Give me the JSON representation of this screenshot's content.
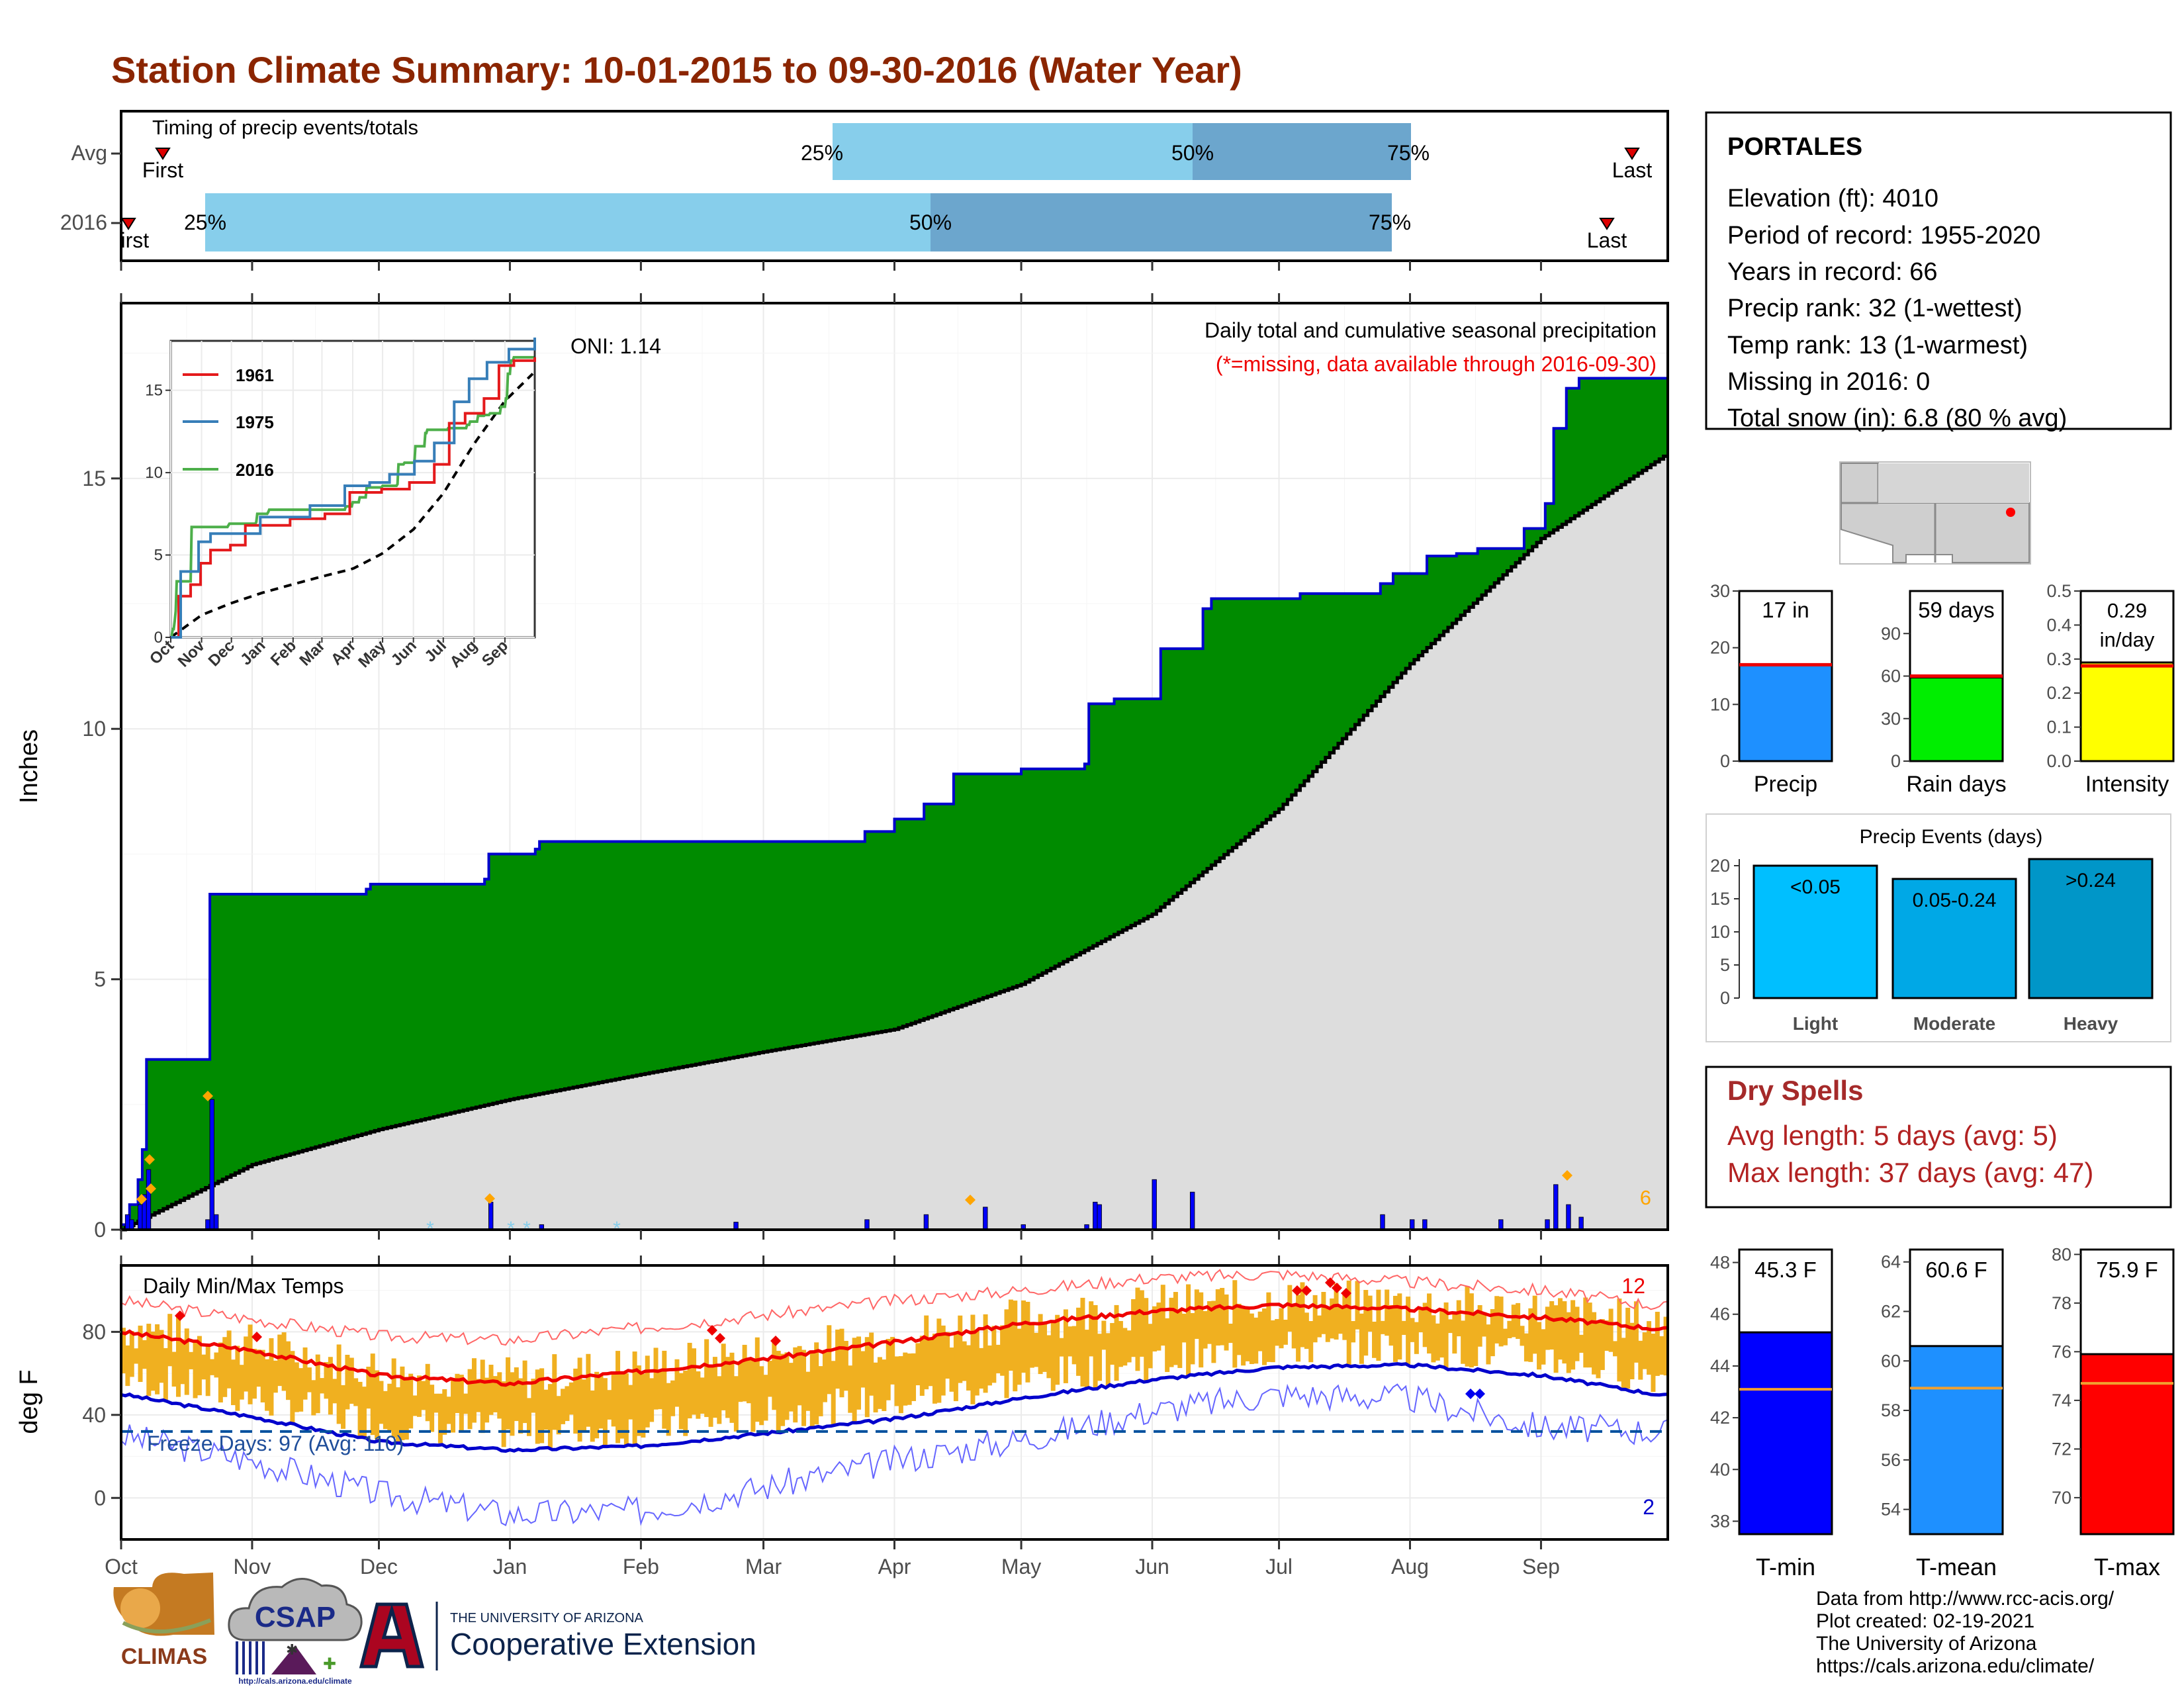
{
  "title": "Station Climate Summary: 10-01-2015 to 09-30-2016 (Water Year)",
  "months": [
    "Oct",
    "Nov",
    "Dec",
    "Jan",
    "Feb",
    "Mar",
    "Apr",
    "May",
    "Jun",
    "Jul",
    "Aug",
    "Sep"
  ],
  "timing": {
    "label": "Timing of precip events/totals",
    "rows": [
      {
        "name": "Avg",
        "first": "First",
        "last": "Last",
        "p25": "25%",
        "p50": "50%",
        "p75": "75%"
      },
      {
        "name": "2016",
        "first": "First",
        "last": "Last",
        "p25": "25%",
        "p50": "50%",
        "p75": "75%"
      }
    ]
  },
  "precip_panel": {
    "ylabel": "Inches",
    "yticks": [
      "0",
      "5",
      "10",
      "15"
    ],
    "oni": "ONI: 1.14",
    "caption": "Daily total and cumulative seasonal precipitation",
    "missing_note": "(*=missing, data available through 2016-09-30)",
    "count_label": "6"
  },
  "inset": {
    "legend": [
      "1961",
      "1975",
      "2016"
    ],
    "colors": [
      "#e41a1c",
      "#377eb8",
      "#4daf4a"
    ],
    "yticks": [
      "0",
      "5",
      "10",
      "15"
    ],
    "xticks": [
      "Oct",
      "Nov",
      "Dec",
      "Jan",
      "Feb",
      "Mar",
      "Apr",
      "May",
      "Jun",
      "Jul",
      "Aug",
      "Sep"
    ]
  },
  "temp_panel": {
    "ylabel": "deg F",
    "label": "Daily Min/Max Temps",
    "yticks": [
      "0",
      "40",
      "80"
    ],
    "freeze": "Freeze Days: 97 (Avg: 110)",
    "hot_count": "12",
    "cold_count": "2"
  },
  "station": {
    "name": "PORTALES",
    "lines": [
      "Elevation (ft): 4010",
      "Period of record: 1955-2020",
      "Years in record: 66",
      "Precip rank: 32 (1-wettest)",
      "Temp rank: 13 (1-warmest)",
      "Missing in 2016: 0",
      "Total snow (in): 6.8 (80 % avg)"
    ]
  },
  "summary_bars": [
    {
      "name": "Precip",
      "label": "17 in",
      "value": 17,
      "avg": 17,
      "ylim": [
        0,
        30
      ],
      "yticks": [
        "0",
        "10",
        "20",
        "30"
      ],
      "color": "#1e90ff"
    },
    {
      "name": "Rain days",
      "label": "59 days",
      "value": 59,
      "avg": 60,
      "ylim": [
        0,
        120
      ],
      "yticks": [
        "0",
        "30",
        "60",
        "90"
      ],
      "color": "#00ee00"
    },
    {
      "name": "Intensity",
      "label1": "0.29",
      "label2": "in/day",
      "value": 0.29,
      "avg": 0.28,
      "ylim": [
        0,
        0.5
      ],
      "yticks": [
        "0.0",
        "0.1",
        "0.2",
        "0.3",
        "0.4",
        "0.5"
      ],
      "color": "#ffff00"
    }
  ],
  "precip_events": {
    "title": "Precip Events (days)",
    "categories": [
      "Light",
      "Moderate",
      "Heavy"
    ],
    "labels": [
      "<0.05",
      "0.05-0.24",
      ">0.24"
    ],
    "values": [
      20,
      18,
      21
    ],
    "yticks": [
      "0",
      "5",
      "10",
      "15",
      "20"
    ],
    "colors": [
      "#00bfff",
      "#00a8e6",
      "#0096c8"
    ]
  },
  "dry_spells": {
    "title": "Dry Spells",
    "avg": "Avg length: 5 days (avg: 5)",
    "max": "Max length: 37 days (avg: 47)"
  },
  "temp_bars": [
    {
      "name": "T-min",
      "label": "45.3 F",
      "value": 45.3,
      "avg": 43.1,
      "ylim": [
        37.5,
        48.5
      ],
      "yticks": [
        "38",
        "40",
        "42",
        "44",
        "46",
        "48"
      ],
      "color": "#0000ff"
    },
    {
      "name": "T-mean",
      "label": "60.6 F",
      "value": 60.6,
      "avg": 58.9,
      "ylim": [
        53,
        64.5
      ],
      "yticks": [
        "54",
        "56",
        "58",
        "60",
        "62",
        "64"
      ],
      "color": "#1e90ff"
    },
    {
      "name": "T-max",
      "label": "75.9 F",
      "value": 75.9,
      "avg": 74.7,
      "ylim": [
        68.5,
        80.2
      ],
      "yticks": [
        "70",
        "72",
        "74",
        "76",
        "78",
        "80"
      ],
      "color": "#ff0000"
    }
  ],
  "footer": {
    "lines": [
      "Data from http://www.rcc-acis.org/",
      "Plot created: 02-19-2021",
      "The University of Arizona",
      "https://cals.arizona.edu/climate/"
    ],
    "climas": "CLIMAS",
    "csap": "CSAP",
    "csap_url": "http://cals.arizona.edu/climate",
    "ua_small": "THE UNIVERSITY OF ARIZONA",
    "ua_big": "Cooperative Extension"
  },
  "chart_data": {
    "type": "area",
    "title": "Daily total and cumulative seasonal precipitation",
    "ylabel": "Inches",
    "ylim": [
      0,
      18.5
    ],
    "cumulative_2016": {
      "dates": [
        "10-01",
        "10-03",
        "10-05",
        "10-06",
        "10-07",
        "10-21",
        "10-22",
        "11-28",
        "11-29",
        "12-26",
        "12-27",
        "01-07",
        "01-08",
        "03-25",
        "04-01",
        "04-08",
        "04-15",
        "05-01",
        "05-16",
        "05-17",
        "05-23",
        "06-03",
        "06-13",
        "06-15",
        "07-06",
        "07-25",
        "07-28",
        "08-05",
        "08-12",
        "08-17",
        "08-28",
        "09-02",
        "09-04",
        "09-07",
        "09-10",
        "09-30"
      ],
      "values": [
        0.1,
        0.5,
        1.0,
        1.6,
        3.4,
        3.4,
        6.7,
        6.8,
        6.9,
        7.0,
        7.5,
        7.6,
        7.75,
        7.95,
        8.2,
        8.5,
        9.1,
        9.2,
        9.3,
        10.5,
        10.6,
        11.6,
        12.4,
        12.6,
        12.7,
        12.9,
        13.1,
        13.45,
        13.5,
        13.6,
        14.0,
        14.5,
        16.0,
        16.8,
        17.0,
        17.0
      ]
    },
    "average_cumulative": {
      "months": [
        "Oct",
        "Nov",
        "Dec",
        "Jan",
        "Feb",
        "Mar",
        "Apr",
        "May",
        "Jun",
        "Jul",
        "Aug",
        "Sep",
        "Sep-end"
      ],
      "values": [
        0.0,
        1.3,
        2.0,
        2.6,
        3.1,
        3.55,
        4.0,
        4.9,
        6.3,
        8.4,
        11.3,
        13.8,
        15.5
      ]
    },
    "daily_precip": [
      {
        "date": "10-02",
        "value": 0.3
      },
      {
        "date": "10-03",
        "value": 0.2
      },
      {
        "date": "10-05",
        "value": 0.5
      },
      {
        "date": "10-06",
        "value": 0.7
      },
      {
        "date": "10-07",
        "value": 1.2
      },
      {
        "date": "10-21",
        "value": 0.2
      },
      {
        "date": "10-22",
        "value": 2.6
      },
      {
        "date": "10-23",
        "value": 0.3
      },
      {
        "date": "12-27",
        "value": 0.55
      },
      {
        "date": "01-08",
        "value": 0.1
      },
      {
        "date": "02-23",
        "value": 0.15
      },
      {
        "date": "03-25",
        "value": 0.2
      },
      {
        "date": "04-08",
        "value": 0.3
      },
      {
        "date": "04-22",
        "value": 0.45
      },
      {
        "date": "05-01",
        "value": 0.1
      },
      {
        "date": "05-16",
        "value": 0.1
      },
      {
        "date": "05-18",
        "value": 0.55
      },
      {
        "date": "05-19",
        "value": 0.5
      },
      {
        "date": "06-01",
        "value": 1.0
      },
      {
        "date": "06-10",
        "value": 0.75
      },
      {
        "date": "07-25",
        "value": 0.3
      },
      {
        "date": "08-01",
        "value": 0.2
      },
      {
        "date": "08-04",
        "value": 0.2
      },
      {
        "date": "08-22",
        "value": 0.2
      },
      {
        "date": "09-02",
        "value": 0.2
      },
      {
        "date": "09-04",
        "value": 0.9
      },
      {
        "date": "09-07",
        "value": 0.5
      },
      {
        "date": "09-10",
        "value": 0.25
      }
    ],
    "temperature": {
      "ylabel": "deg F",
      "ylim": [
        -20,
        112
      ],
      "freeze_line": 32,
      "avg_max_by_month": {
        "months": [
          "Oct",
          "Nov",
          "Dec",
          "Jan",
          "Feb",
          "Mar",
          "Apr",
          "May",
          "Jun",
          "Jul",
          "Aug",
          "Sep",
          "Sep-end"
        ],
        "values": [
          80,
          71,
          59,
          55,
          61,
          67,
          75,
          84,
          90,
          93,
          91,
          87,
          81
        ]
      },
      "avg_min_by_month": {
        "months": [
          "Oct",
          "Nov",
          "Dec",
          "Jan",
          "Feb",
          "Mar",
          "Apr",
          "May",
          "Jun",
          "Jul",
          "Aug",
          "Sep",
          "Sep-end"
        ],
        "values": [
          50,
          39,
          27,
          23,
          25,
          31,
          38,
          48,
          57,
          63,
          64,
          59,
          49
        ]
      },
      "record_high_by_month": {
        "months": [
          "Oct",
          "Nov",
          "Dec",
          "Jan",
          "Feb",
          "Mar",
          "Apr",
          "May",
          "Jun",
          "Jul",
          "Aug",
          "Sep",
          "Sep-end"
        ],
        "values": [
          95,
          86,
          78,
          76,
          82,
          88,
          95,
          100,
          106,
          108,
          104,
          100,
          92
        ]
      },
      "record_low_by_month": {
        "months": [
          "Oct",
          "Nov",
          "Dec",
          "Jan",
          "Feb",
          "Mar",
          "Apr",
          "May",
          "Jun",
          "Jul",
          "Aug",
          "Sep",
          "Sep-end"
        ],
        "values": [
          30,
          18,
          2,
          -8,
          -6,
          5,
          18,
          28,
          42,
          50,
          48,
          34,
          32
        ]
      }
    }
  }
}
